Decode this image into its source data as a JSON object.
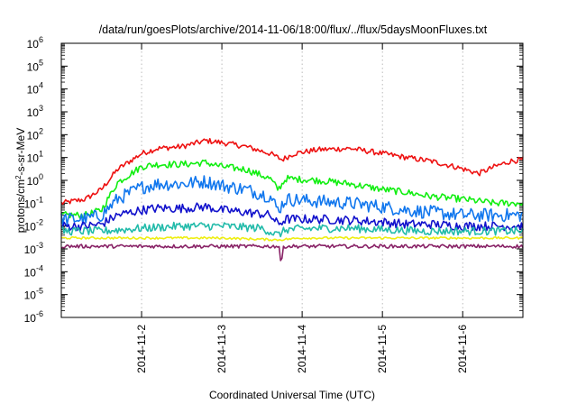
{
  "chart_data": {
    "type": "line",
    "title": "/data/run/goesPlots/archive/2014-11-06/18:00/flux/../flux/5daysMoonFluxes.txt",
    "xlabel": "Coordinated Universal Time (UTC)",
    "ylabel": "protons/cm2-s-sr-MeV",
    "yscale": "log",
    "ylim": [
      1e-06,
      1000000.0
    ],
    "xlim": [
      1.0,
      6.75
    ],
    "x_unit": "day of 2014-11",
    "grid": true,
    "x_ticks": [
      {
        "x": 2,
        "label": "2014-11-2"
      },
      {
        "x": 3,
        "label": "2014-11-3"
      },
      {
        "x": 4,
        "label": "2014-11-4"
      },
      {
        "x": 5,
        "label": "2014-11-5"
      },
      {
        "x": 6,
        "label": "2014-11-6"
      }
    ],
    "y_ticks": [
      {
        "exp": -6,
        "base": "10",
        "sup": "-6"
      },
      {
        "exp": -5,
        "base": "10",
        "sup": "-5"
      },
      {
        "exp": -4,
        "base": "10",
        "sup": "-4"
      },
      {
        "exp": -3,
        "base": "10",
        "sup": "-3"
      },
      {
        "exp": -2,
        "base": "10",
        "sup": "-2"
      },
      {
        "exp": -1,
        "base": "10",
        "sup": "-1"
      },
      {
        "exp": 0,
        "base": "10",
        "sup": "0"
      },
      {
        "exp": 1,
        "base": "10",
        "sup": "1"
      },
      {
        "exp": 2,
        "base": "10",
        "sup": "2"
      },
      {
        "exp": 3,
        "base": "10",
        "sup": "3"
      },
      {
        "exp": 4,
        "base": "10",
        "sup": "4"
      },
      {
        "exp": 5,
        "base": "10",
        "sup": "5"
      },
      {
        "exp": 6,
        "base": "10",
        "sup": "6"
      }
    ],
    "series": [
      {
        "color": "#ee1111",
        "x": [
          1.0,
          1.3,
          1.5,
          1.7,
          2.0,
          2.2,
          2.5,
          2.8,
          3.0,
          3.3,
          3.6,
          3.75,
          3.9,
          4.2,
          4.6,
          5.0,
          5.3,
          5.6,
          5.9,
          6.2,
          6.4,
          6.6,
          6.75
        ],
        "y": [
          0.1,
          0.15,
          0.4,
          3,
          15,
          25,
          30,
          55,
          45,
          30,
          15,
          8,
          15,
          22,
          25,
          15,
          10,
          7,
          4,
          2,
          4,
          7,
          8
        ],
        "noise": 0.12
      },
      {
        "color": "#11ee11",
        "x": [
          1.0,
          1.3,
          1.5,
          1.7,
          2.0,
          2.2,
          2.5,
          2.8,
          3.0,
          3.3,
          3.6,
          3.7,
          3.8,
          4.2,
          4.6,
          5.0,
          5.3,
          5.6,
          6.0,
          6.4,
          6.75
        ],
        "y": [
          0.03,
          0.03,
          0.05,
          0.8,
          4,
          5,
          5,
          6,
          4,
          3,
          1.2,
          0.4,
          1.2,
          1.0,
          0.7,
          0.4,
          0.3,
          0.2,
          0.15,
          0.1,
          0.1
        ],
        "noise": 0.15
      },
      {
        "color": "#1177ee",
        "x": [
          1.0,
          1.3,
          1.5,
          1.7,
          2.0,
          2.2,
          2.5,
          2.8,
          3.0,
          3.3,
          3.6,
          3.7,
          3.8,
          4.2,
          4.6,
          5.0,
          5.3,
          5.6,
          6.0,
          6.4,
          6.75
        ],
        "y": [
          0.02,
          0.02,
          0.03,
          0.15,
          0.5,
          0.7,
          0.7,
          0.9,
          0.6,
          0.4,
          0.2,
          0.05,
          0.15,
          0.12,
          0.1,
          0.07,
          0.05,
          0.04,
          0.03,
          0.03,
          0.03
        ],
        "noise": 0.3
      },
      {
        "color": "#1111cc",
        "x": [
          1.0,
          1.3,
          1.5,
          1.7,
          2.0,
          2.2,
          2.5,
          2.8,
          3.0,
          3.3,
          3.6,
          3.7,
          3.8,
          4.2,
          4.6,
          5.0,
          5.3,
          5.6,
          6.0,
          6.4,
          6.75
        ],
        "y": [
          0.01,
          0.01,
          0.012,
          0.03,
          0.05,
          0.06,
          0.06,
          0.07,
          0.05,
          0.04,
          0.03,
          0.012,
          0.02,
          0.02,
          0.018,
          0.015,
          0.012,
          0.012,
          0.01,
          0.01,
          0.01
        ],
        "noise": 0.2
      },
      {
        "color": "#22bbaa",
        "x": [
          1.0,
          1.5,
          2.0,
          2.5,
          3.0,
          3.5,
          3.7,
          3.8,
          4.2,
          4.6,
          5.0,
          5.5,
          6.0,
          6.75
        ],
        "y": [
          0.006,
          0.006,
          0.008,
          0.01,
          0.01,
          0.008,
          0.004,
          0.007,
          0.008,
          0.008,
          0.007,
          0.006,
          0.006,
          0.006
        ],
        "noise": 0.18
      },
      {
        "color": "#eeee11",
        "x": [
          1.0,
          2.0,
          3.0,
          3.7,
          4.0,
          5.0,
          6.0,
          6.75
        ],
        "y": [
          0.003,
          0.003,
          0.003,
          0.0025,
          0.003,
          0.003,
          0.003,
          0.003
        ],
        "noise": 0.05
      },
      {
        "color": "#882266",
        "x": [
          1.0,
          2.0,
          3.0,
          3.65,
          3.72,
          3.74,
          3.76,
          3.8,
          4.0,
          5.0,
          6.0,
          6.75
        ],
        "y": [
          0.0013,
          0.0013,
          0.0013,
          0.0013,
          0.0013,
          0.0001,
          0.0013,
          0.0013,
          0.0013,
          0.0013,
          0.0013,
          0.0013
        ],
        "noise": 0.08
      }
    ]
  }
}
